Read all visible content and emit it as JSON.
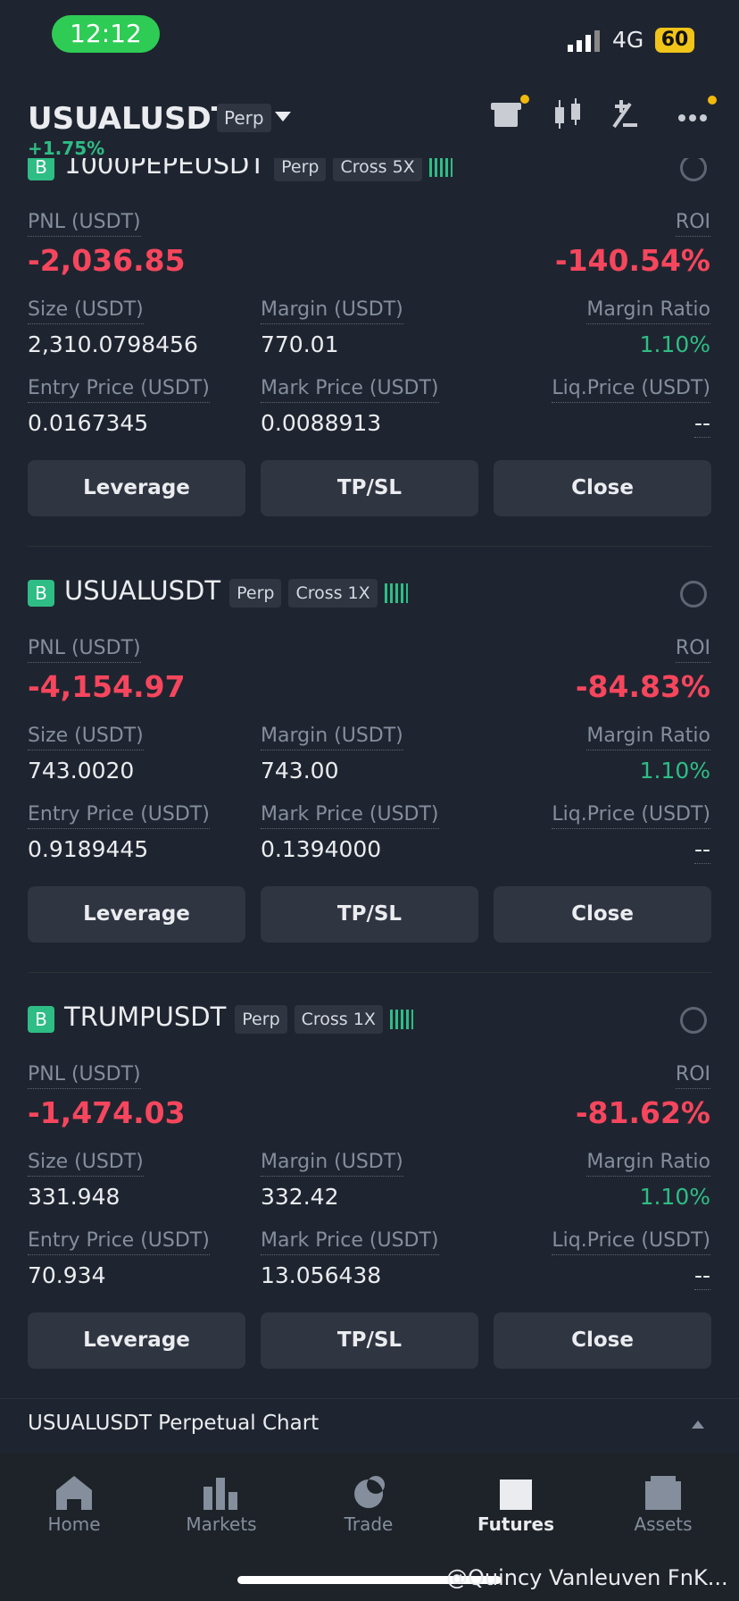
{
  "status_bar": {
    "time": "12:12",
    "network": "4G",
    "battery": "60"
  },
  "header": {
    "symbol": "USUALUSDT",
    "tag": "Perp",
    "change": "+1.75%"
  },
  "positions": [
    {
      "side": "B",
      "symbol": "1000PEPEUSDT",
      "tags": [
        "Perp",
        "Cross 5X"
      ],
      "pnl_label": "PNL (USDT)",
      "pnl": "-2,036.85",
      "roi_label": "ROI",
      "roi": "-140.54%",
      "fields": [
        {
          "label": "Size (USDT)",
          "value": "2,310.0798456"
        },
        {
          "label": "Margin (USDT)",
          "value": "770.01"
        },
        {
          "label": "Margin Ratio",
          "value": "1.10%"
        },
        {
          "label": "Entry Price (USDT)",
          "value": "0.0167345"
        },
        {
          "label": "Mark Price (USDT)",
          "value": "0.0088913"
        },
        {
          "label": "Liq.Price (USDT)",
          "value": "--"
        }
      ],
      "buttons": [
        "Leverage",
        "TP/SL",
        "Close"
      ]
    },
    {
      "side": "B",
      "symbol": "USUALUSDT",
      "tags": [
        "Perp",
        "Cross 1X"
      ],
      "pnl_label": "PNL (USDT)",
      "pnl": "-4,154.97",
      "roi_label": "ROI",
      "roi": "-84.83%",
      "fields": [
        {
          "label": "Size (USDT)",
          "value": "743.0020"
        },
        {
          "label": "Margin (USDT)",
          "value": "743.00"
        },
        {
          "label": "Margin Ratio",
          "value": "1.10%"
        },
        {
          "label": "Entry Price (USDT)",
          "value": "0.9189445"
        },
        {
          "label": "Mark Price (USDT)",
          "value": "0.1394000"
        },
        {
          "label": "Liq.Price (USDT)",
          "value": "--"
        }
      ],
      "buttons": [
        "Leverage",
        "TP/SL",
        "Close"
      ]
    },
    {
      "side": "B",
      "symbol": "TRUMPUSDT",
      "tags": [
        "Perp",
        "Cross 1X"
      ],
      "pnl_label": "PNL (USDT)",
      "pnl": "-1,474.03",
      "roi_label": "ROI",
      "roi": "-81.62%",
      "fields": [
        {
          "label": "Size (USDT)",
          "value": "331.948"
        },
        {
          "label": "Margin (USDT)",
          "value": "332.42"
        },
        {
          "label": "Margin Ratio",
          "value": "1.10%"
        },
        {
          "label": "Entry Price (USDT)",
          "value": "70.934"
        },
        {
          "label": "Mark Price (USDT)",
          "value": "13.056438"
        },
        {
          "label": "Liq.Price (USDT)",
          "value": "--"
        }
      ],
      "buttons": [
        "Leverage",
        "TP/SL",
        "Close"
      ]
    }
  ],
  "chart_bar": {
    "title": "USUALUSDT Perpetual  Chart"
  },
  "nav": [
    "Home",
    "Markets",
    "Trade",
    "Futures",
    "Assets"
  ],
  "watermark": "@Quincy Vanleuven FnK..."
}
